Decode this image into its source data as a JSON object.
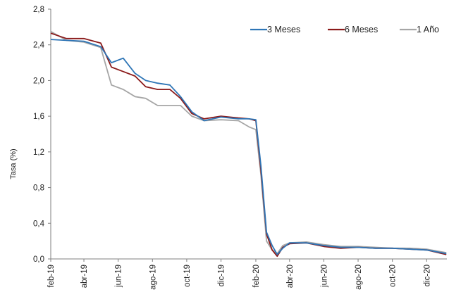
{
  "chart_data": {
    "type": "line",
    "title": "",
    "xlabel": "",
    "ylabel": "Tasa (%)",
    "ylim": [
      0,
      2.8
    ],
    "yticks": [
      "0,0",
      "0,4",
      "0,8",
      "1,2",
      "1,6",
      "2,0",
      "2,4",
      "2,8"
    ],
    "x_tick_labels": [
      "feb-19",
      "abr-19",
      "jun-19",
      "ago-19",
      "oct-19",
      "dic-19",
      "feb-20",
      "abr-20",
      "jun-20",
      "ago-20",
      "oct-20",
      "dic-20"
    ],
    "grid": false,
    "legend_position": "top-right",
    "x": [
      "2019-02-01",
      "2019-03-01",
      "2019-04-01",
      "2019-05-01",
      "2019-05-20",
      "2019-06-10",
      "2019-07-01",
      "2019-07-20",
      "2019-08-10",
      "2019-09-01",
      "2019-09-20",
      "2019-10-10",
      "2019-11-01",
      "2019-12-01",
      "2020-01-01",
      "2020-01-20",
      "2020-02-01",
      "2020-02-10",
      "2020-02-20",
      "2020-03-01",
      "2020-03-10",
      "2020-03-20",
      "2020-04-01",
      "2020-05-01",
      "2020-06-01",
      "2020-07-01",
      "2020-08-01",
      "2020-09-01",
      "2020-10-01",
      "2020-11-01",
      "2020-12-01",
      "2021-01-05"
    ],
    "series": [
      {
        "name": "3 Meses",
        "color": "#2e75b6",
        "values": [
          2.46,
          2.45,
          2.44,
          2.38,
          2.2,
          2.25,
          2.08,
          2.0,
          1.97,
          1.95,
          1.82,
          1.65,
          1.55,
          1.59,
          1.57,
          1.57,
          1.56,
          1.05,
          0.3,
          0.15,
          0.05,
          0.12,
          0.18,
          0.18,
          0.15,
          0.13,
          0.13,
          0.12,
          0.12,
          0.11,
          0.1,
          0.06
        ]
      },
      {
        "name": "6 Meses",
        "color": "#8b1a1a",
        "values": [
          2.53,
          2.47,
          2.47,
          2.42,
          2.15,
          2.1,
          2.05,
          1.93,
          1.9,
          1.9,
          1.8,
          1.63,
          1.57,
          1.6,
          1.58,
          1.57,
          1.55,
          1.0,
          0.28,
          0.1,
          0.03,
          0.13,
          0.17,
          0.18,
          0.14,
          0.12,
          0.13,
          0.12,
          0.12,
          0.11,
          0.1,
          0.05
        ]
      },
      {
        "name": "1 Año",
        "color": "#a6a6a6",
        "values": [
          2.55,
          2.45,
          2.43,
          2.37,
          1.95,
          1.9,
          1.82,
          1.8,
          1.72,
          1.72,
          1.72,
          1.6,
          1.55,
          1.56,
          1.55,
          1.48,
          1.45,
          0.95,
          0.2,
          0.1,
          0.06,
          0.15,
          0.18,
          0.19,
          0.16,
          0.14,
          0.14,
          0.13,
          0.12,
          0.12,
          0.11,
          0.07
        ]
      }
    ]
  }
}
